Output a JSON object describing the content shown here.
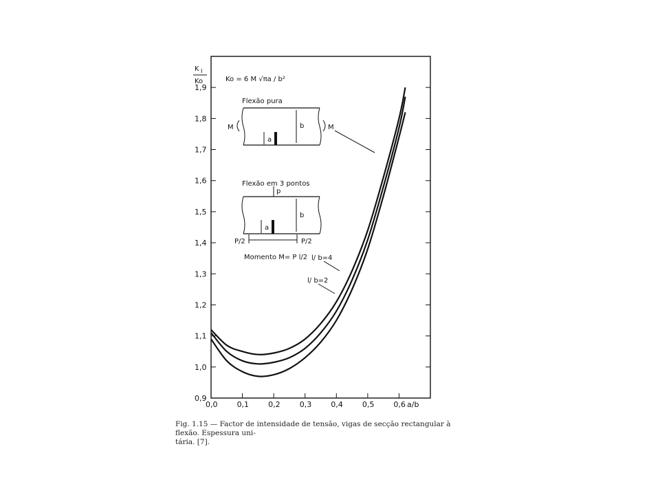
{
  "chart_data": {
    "type": "line",
    "y_axis_label_numerator": "K",
    "y_axis_label_subscript": "I",
    "y_axis_label_denominator": "Ko",
    "xlabel": "a/b",
    "xlim": [
      0.0,
      0.7
    ],
    "ylim": [
      0.9,
      2.0
    ],
    "x_ticks": [
      "0,0",
      "0,1",
      "0,2",
      "0,3",
      "0,4",
      "0,5",
      "0,6"
    ],
    "y_ticks": [
      "0,9",
      "1,0",
      "1,1",
      "1,2",
      "1,3",
      "1,4",
      "1,5",
      "1,6",
      "1,7",
      "1,8",
      "1,9"
    ],
    "grid": false,
    "series": [
      {
        "name": "Flexão pura",
        "x": [
          0.0,
          0.05,
          0.1,
          0.15,
          0.2,
          0.25,
          0.3,
          0.35,
          0.4,
          0.45,
          0.5,
          0.55,
          0.6,
          0.62
        ],
        "y": [
          1.12,
          1.07,
          1.05,
          1.04,
          1.045,
          1.06,
          1.09,
          1.14,
          1.21,
          1.31,
          1.44,
          1.61,
          1.8,
          1.9
        ]
      },
      {
        "name": "l/b=4",
        "x": [
          0.0,
          0.05,
          0.1,
          0.15,
          0.2,
          0.25,
          0.3,
          0.35,
          0.4,
          0.45,
          0.5,
          0.55,
          0.6,
          0.62
        ],
        "y": [
          1.11,
          1.05,
          1.02,
          1.01,
          1.015,
          1.03,
          1.06,
          1.11,
          1.18,
          1.28,
          1.41,
          1.58,
          1.77,
          1.87
        ]
      },
      {
        "name": "l/b=2",
        "x": [
          0.0,
          0.05,
          0.1,
          0.15,
          0.2,
          0.25,
          0.3,
          0.35,
          0.4,
          0.45,
          0.5,
          0.55,
          0.6,
          0.62
        ],
        "y": [
          1.09,
          1.02,
          0.985,
          0.97,
          0.975,
          0.995,
          1.03,
          1.08,
          1.15,
          1.25,
          1.38,
          1.55,
          1.74,
          1.82
        ]
      }
    ],
    "annotations": {
      "formula": "Ko = 6 M √πa / b²",
      "pure_bending_title": "Flexão pura",
      "three_point_title": "Flexão em 3 pontos",
      "moment_label": "M",
      "height_label": "b",
      "crack_label": "a",
      "load_label": "p",
      "reaction_label": "P/2",
      "moment_formula": "Momento M= P l/2",
      "curve_label_lb4": "l/ b=4",
      "curve_label_lb2": "l/ b=2"
    },
    "caption_line1": "Fig. 1.15 — Factor de intensidade de tensão, vigas de secção rectangular à flexão. Espessura uni-",
    "caption_line2": "tária. [7]."
  }
}
